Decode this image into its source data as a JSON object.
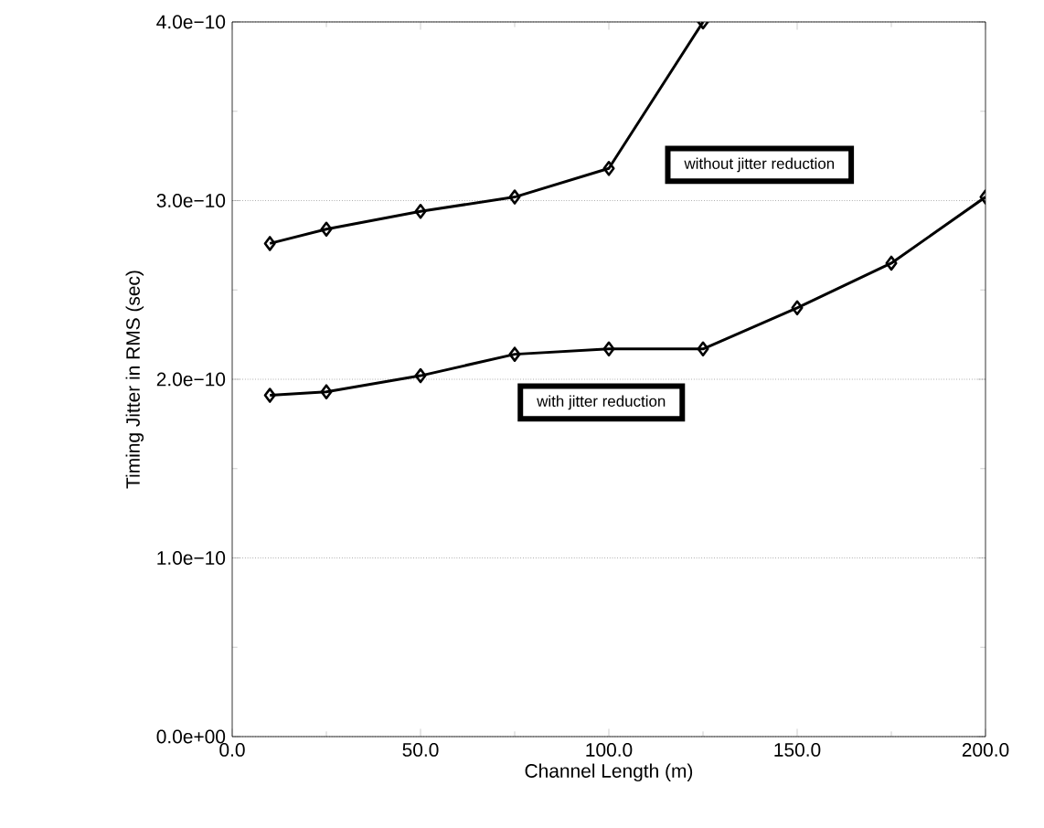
{
  "chart_data": {
    "type": "line",
    "xlabel": "Channel Length (m)",
    "ylabel": "Timing Jitter in RMS (sec)",
    "xlim": [
      0,
      200
    ],
    "ylim": [
      0,
      4e-10
    ],
    "xticks": [
      {
        "value": 0,
        "label": "0.0"
      },
      {
        "value": 50,
        "label": "50.0"
      },
      {
        "value": 100,
        "label": "100.0"
      },
      {
        "value": 150,
        "label": "150.0"
      },
      {
        "value": 200,
        "label": "200.0"
      }
    ],
    "yticks": [
      {
        "value": 0,
        "label": "0.0e+00"
      },
      {
        "value": 1e-10,
        "label": "1.0e−10"
      },
      {
        "value": 2e-10,
        "label": "2.0e−10"
      },
      {
        "value": 3e-10,
        "label": "3.0e−10"
      },
      {
        "value": 4e-10,
        "label": "4.0e−10"
      }
    ],
    "grid": "y",
    "marker": "diamond",
    "line_style": "solid",
    "legend": false,
    "series": [
      {
        "name": "without jitter reduction",
        "color": "#000000",
        "x": [
          10,
          25,
          50,
          75,
          100,
          125
        ],
        "values": [
          2.76e-10,
          2.84e-10,
          2.94e-10,
          3.02e-10,
          3.18e-10,
          4e-10
        ]
      },
      {
        "name": "with jitter reduction",
        "color": "#000000",
        "x": [
          10,
          25,
          50,
          75,
          100,
          125,
          150,
          175,
          200
        ],
        "values": [
          1.91e-10,
          1.93e-10,
          2.02e-10,
          2.14e-10,
          2.17e-10,
          2.17e-10,
          2.4e-10,
          2.65e-10,
          3.02e-10
        ]
      }
    ]
  }
}
